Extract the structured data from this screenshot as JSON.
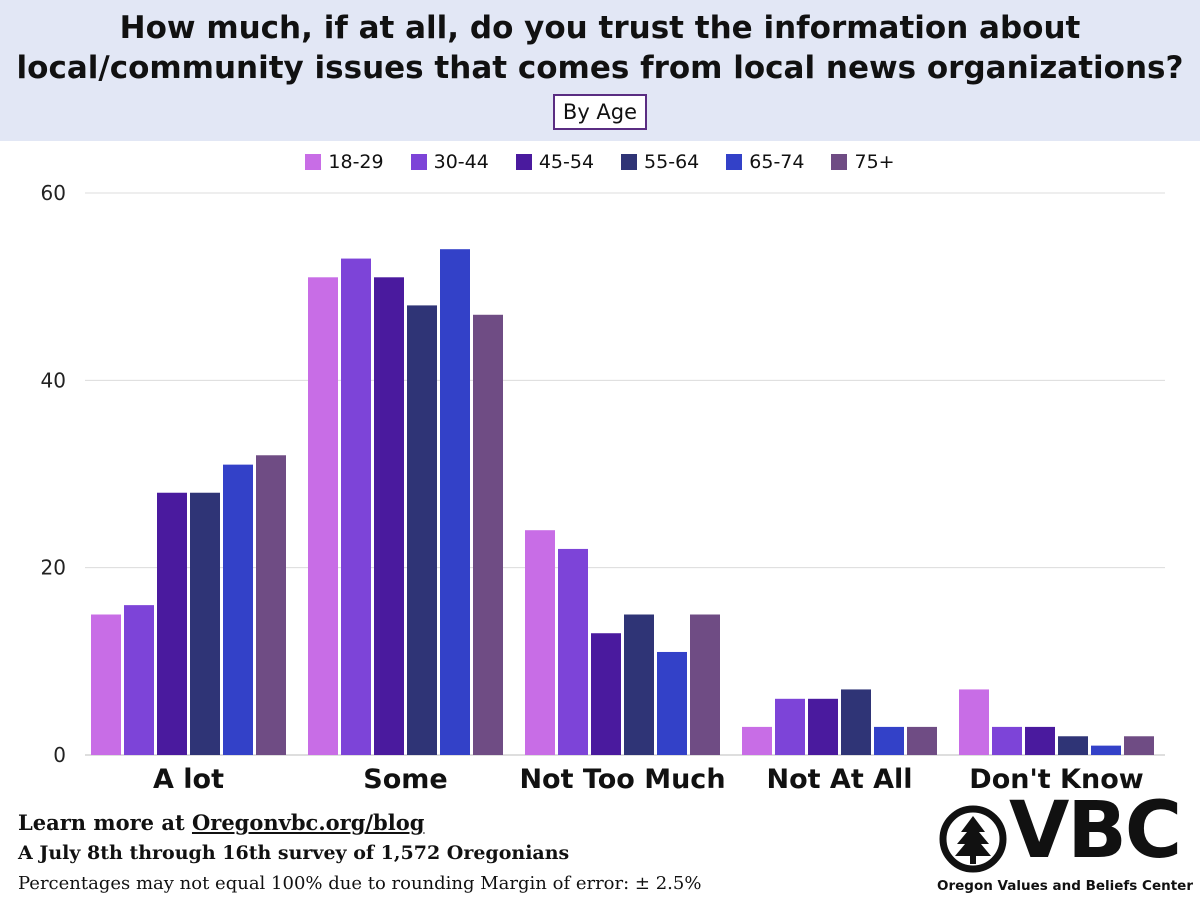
{
  "header": {
    "title_line1": "How much, if at all, do you trust the information about",
    "title_line2": "local/community issues that comes from local news organizations?",
    "subtitle": "By Age"
  },
  "chart_data": {
    "type": "bar",
    "categories": [
      "A lot",
      "Some",
      "Not Too Much",
      "Not At All",
      "Don't Know"
    ],
    "series": [
      {
        "name": "18-29",
        "color": "#c86de6",
        "values": [
          15,
          51,
          24,
          3,
          7
        ]
      },
      {
        "name": "30-44",
        "color": "#7d44d8",
        "values": [
          16,
          53,
          22,
          6,
          3
        ]
      },
      {
        "name": "45-54",
        "color": "#4a1a9e",
        "values": [
          28,
          51,
          13,
          6,
          3
        ]
      },
      {
        "name": "55-64",
        "color": "#2f3476",
        "values": [
          28,
          48,
          15,
          7,
          2
        ]
      },
      {
        "name": "65-74",
        "color": "#3341c8",
        "values": [
          31,
          54,
          11,
          3,
          1
        ]
      },
      {
        "name": "75+",
        "color": "#6f4c84",
        "values": [
          32,
          47,
          15,
          3,
          2
        ]
      }
    ],
    "ylim": [
      0,
      60
    ],
    "yticks": [
      0,
      20,
      40,
      60
    ],
    "grid": true,
    "legend_position": "top"
  },
  "footer": {
    "learn_prefix": "Learn more at ",
    "learn_link": "Oregonvbc.org/blog",
    "survey": "A July 8th through 16th survey of 1,572 Oregonians",
    "note": "Percentages may not equal  100% due to rounding  Margin of error: ± 2.5%"
  },
  "logo": {
    "letters": "VBC",
    "caption": "Oregon Values and Beliefs Center"
  }
}
